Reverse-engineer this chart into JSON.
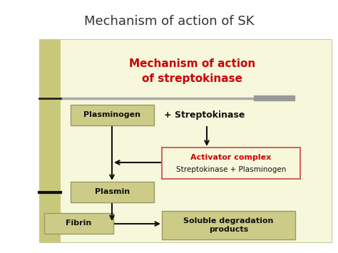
{
  "title": "Mechanism of action of SK",
  "title_fontsize": 13,
  "title_color": "#333333",
  "subtitle_line1": "Mechanism of action",
  "subtitle_line2": "of streptokinase",
  "subtitle_color": "#cc0000",
  "subtitle_fontsize": 11,
  "bg_panel_color": "#f7f7dc",
  "sidebar_color": "#c8c87a",
  "box_fill_color": "#cccc88",
  "box_edge_color": "#999966",
  "activator_box_fill": "#f7f7dc",
  "activator_box_edge": "#cc4444",
  "activator_title_color": "#cc0000",
  "activator_title": "Activator complex",
  "activator_subtitle": "Streptokinase + Plasminogen",
  "plasminogen_label": "Plasminogen",
  "plasmin_label": "Plasmin",
  "fibrin_label": "Fibrin",
  "streptokinase_label": "+ Streptokinase",
  "soluble_label": "Soluble degradation\nproducts",
  "arrow_color": "#111111",
  "separator_line_color": "#aaaaaa",
  "separator_dark_color": "#222222",
  "sidebar_mark_color": "#111111",
  "fig_bg": "#ffffff"
}
